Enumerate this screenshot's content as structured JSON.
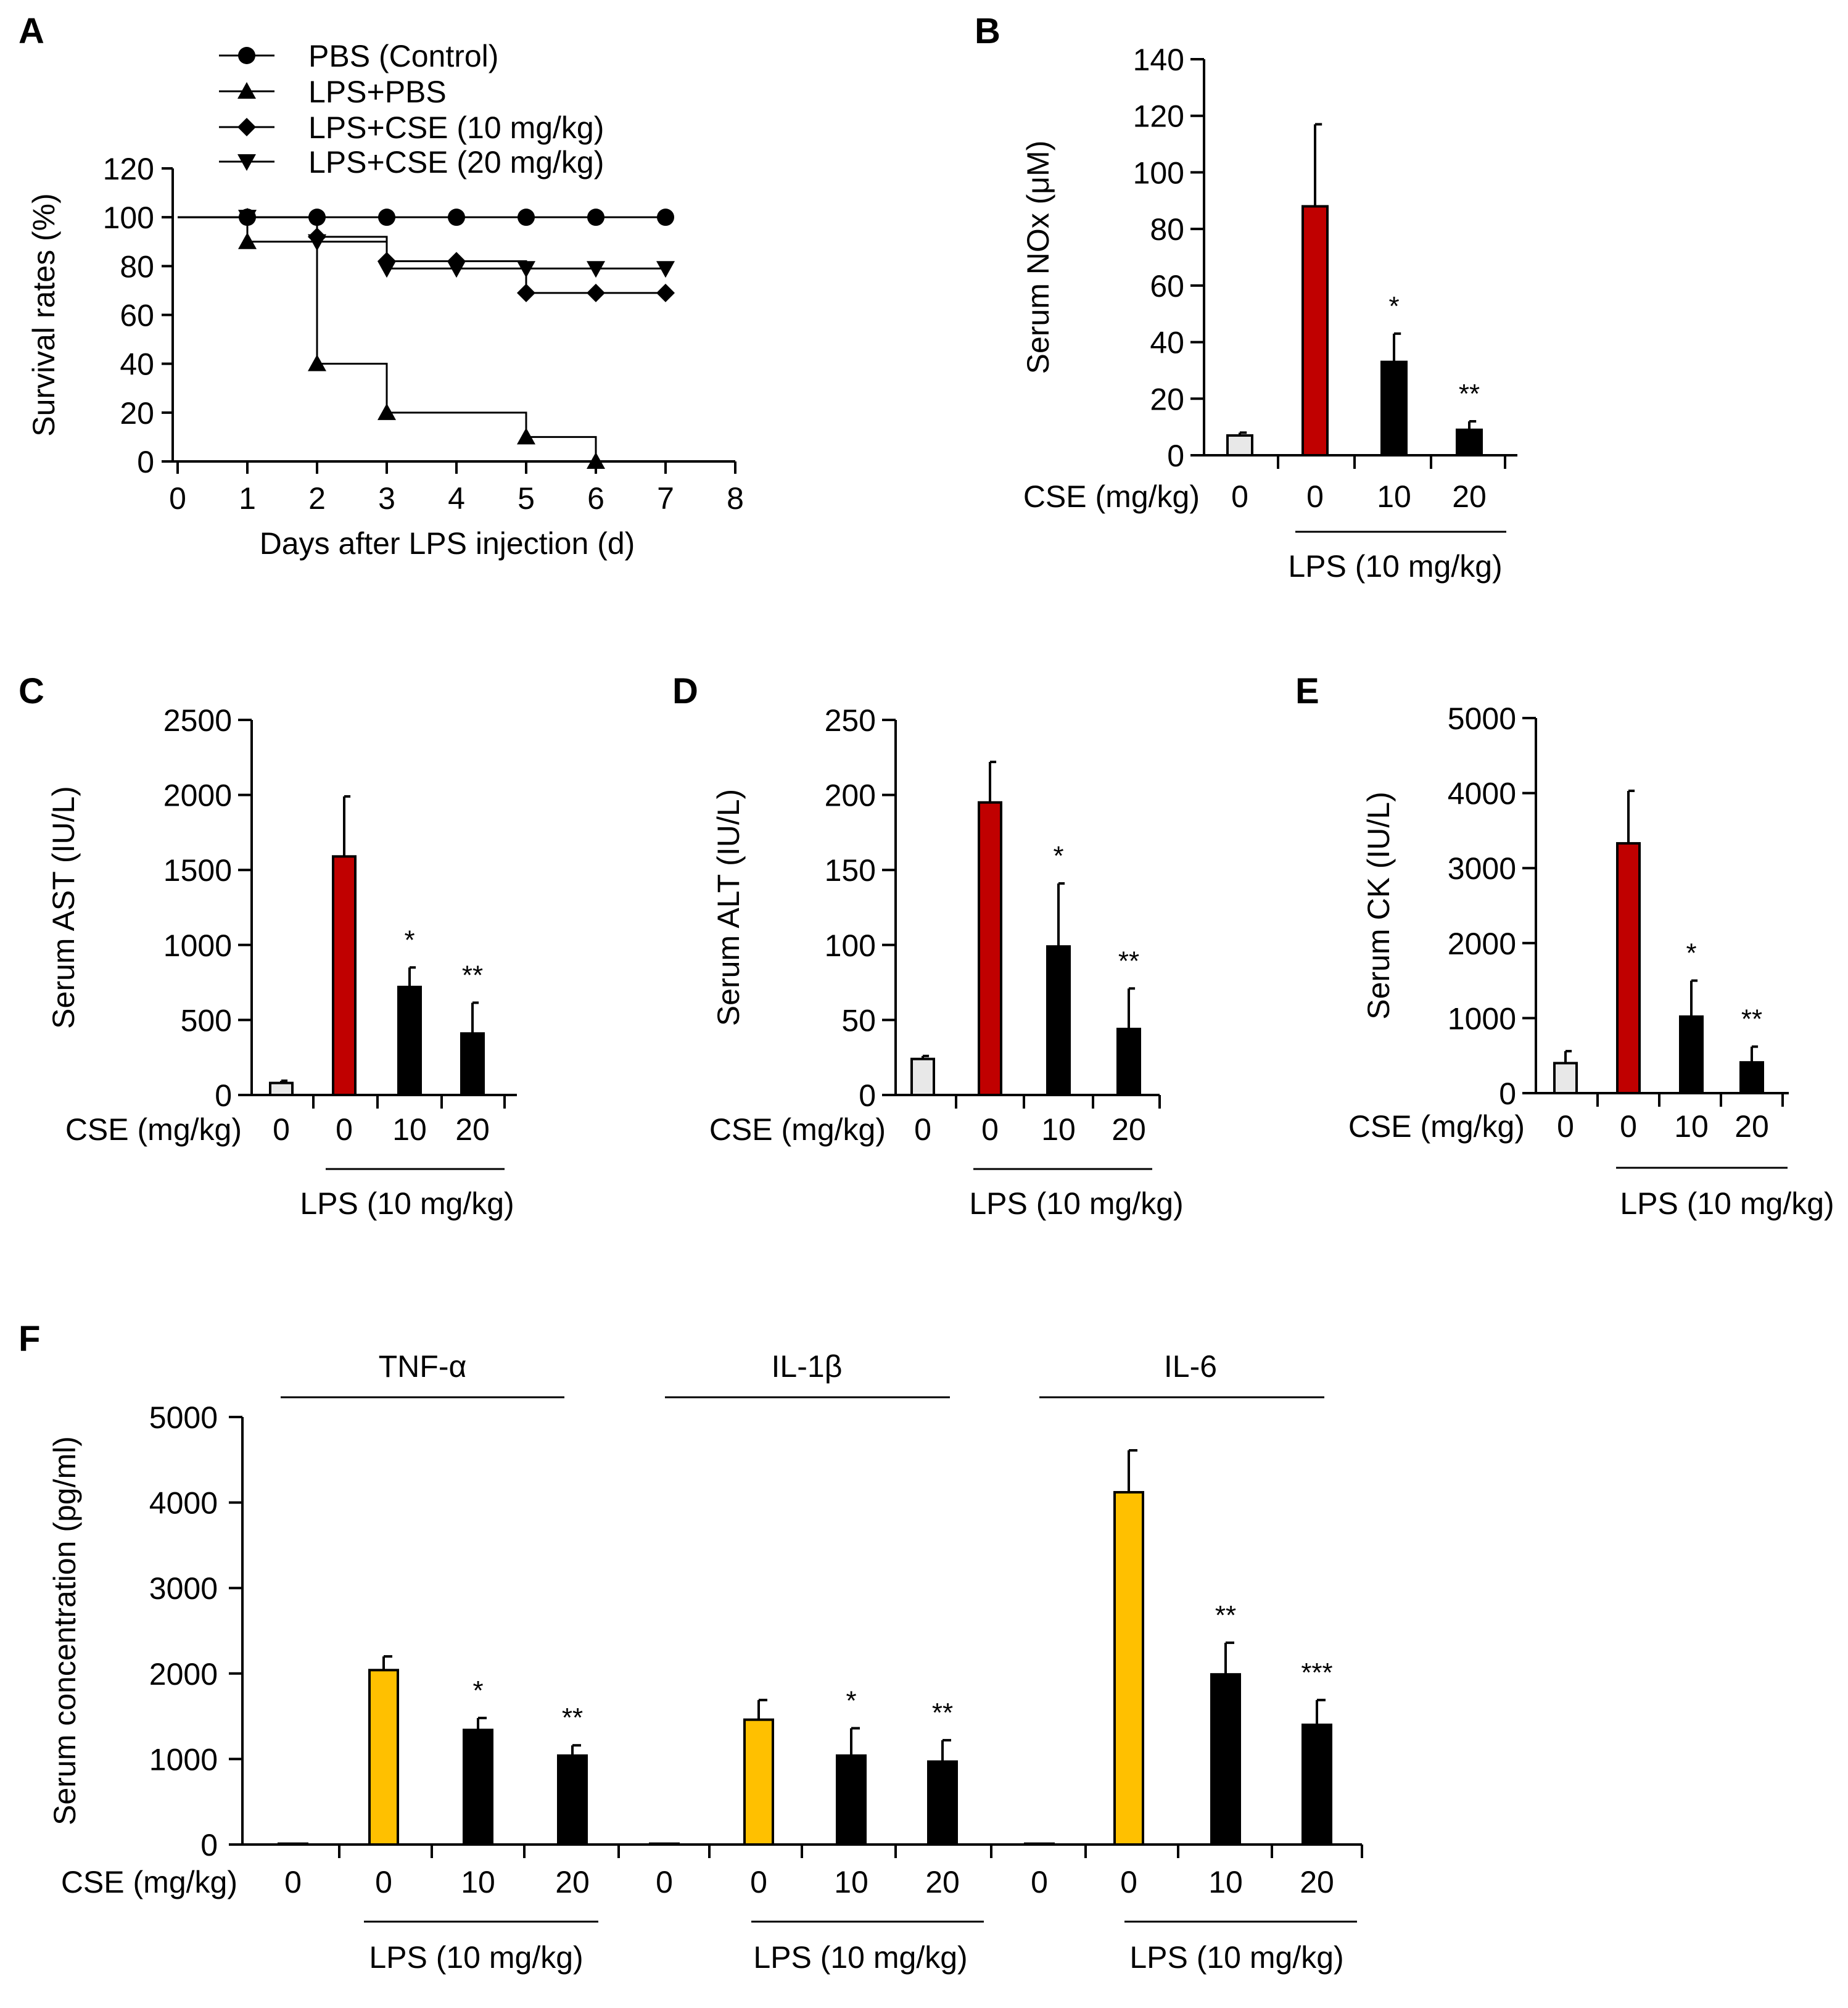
{
  "colors": {
    "axis": "#000000",
    "control_bar": "#e8e8e8",
    "lps_bar_red": "#c00000",
    "lps_bar_yellow": "#ffc000",
    "treated_bar": "#000000"
  },
  "chart_data": [
    {
      "panel": "A",
      "type": "line",
      "step": true,
      "ylabel": "Survival rates (%)",
      "xlabel": "Days after LPS injection (d)",
      "xlim": [
        0,
        8
      ],
      "ylim": [
        0,
        120
      ],
      "xticks": [
        "0",
        "1",
        "2",
        "3",
        "4",
        "5",
        "6",
        "7",
        "8"
      ],
      "yticks": [
        "0",
        "20",
        "40",
        "60",
        "80",
        "100",
        "120"
      ],
      "legend_position": "top",
      "series": [
        {
          "name": "PBS (Control)",
          "marker": "circle",
          "x": [
            0,
            1,
            2,
            3,
            4,
            5,
            6,
            7
          ],
          "y": [
            100,
            100,
            100,
            100,
            100,
            100,
            100,
            100
          ]
        },
        {
          "name": "LPS+PBS",
          "marker": "triangle-up",
          "x": [
            0,
            1,
            2,
            3,
            5,
            6
          ],
          "y": [
            100,
            90,
            40,
            20,
            10,
            0
          ]
        },
        {
          "name": "LPS+CSE (10 mg/kg)",
          "marker": "diamond",
          "x": [
            0,
            1,
            2,
            3,
            4,
            5,
            6,
            7
          ],
          "y": [
            100,
            100,
            92,
            82,
            82,
            69,
            69,
            69
          ]
        },
        {
          "name": "LPS+CSE (20 mg/kg)",
          "marker": "triangle-down",
          "x": [
            0,
            1,
            2,
            3,
            4,
            5,
            6,
            7
          ],
          "y": [
            100,
            100,
            90,
            79,
            79,
            79,
            79,
            79
          ]
        }
      ]
    },
    {
      "panel": "B",
      "type": "bar",
      "ylabel": "Serum NOx (μM)",
      "ylim": [
        0,
        140
      ],
      "yticks": [
        "0",
        "20",
        "40",
        "60",
        "80",
        "100",
        "120",
        "140"
      ],
      "xaxis_label": "CSE (mg/kg)",
      "categories": [
        "0",
        "0",
        "10",
        "20"
      ],
      "values": [
        7,
        88,
        33,
        9
      ],
      "errors": [
        1,
        29,
        10,
        3
      ],
      "significance": [
        "",
        "",
        "*",
        "**"
      ],
      "colors": [
        "control",
        "lps_red",
        "treated",
        "treated"
      ],
      "group_label": "LPS (10 mg/kg)"
    },
    {
      "panel": "C",
      "type": "bar",
      "ylabel": "Serum AST (IU/L)",
      "ylim": [
        0,
        2500
      ],
      "yticks": [
        "0",
        "500",
        "1000",
        "1500",
        "2000",
        "2500"
      ],
      "xaxis_label": "CSE (mg/kg)",
      "categories": [
        "0",
        "0",
        "10",
        "20"
      ],
      "values": [
        80,
        1590,
        720,
        410
      ],
      "errors": [
        15,
        400,
        130,
        205
      ],
      "significance": [
        "",
        "",
        "*",
        "**"
      ],
      "colors": [
        "control",
        "lps_red",
        "treated",
        "treated"
      ],
      "group_label": "LPS (10 mg/kg)"
    },
    {
      "panel": "D",
      "type": "bar",
      "ylabel": "Serum ALT (IU/L)",
      "ylim": [
        0,
        250
      ],
      "yticks": [
        "0",
        "50",
        "100",
        "150",
        "200",
        "250"
      ],
      "xaxis_label": "CSE (mg/kg)",
      "categories": [
        "0",
        "0",
        "10",
        "20"
      ],
      "values": [
        24,
        195,
        99,
        44
      ],
      "errors": [
        2,
        27,
        42,
        27
      ],
      "significance": [
        "",
        "",
        "*",
        "**"
      ],
      "colors": [
        "control",
        "lps_red",
        "treated",
        "treated"
      ],
      "group_label": "LPS (10 mg/kg)"
    },
    {
      "panel": "E",
      "type": "bar",
      "ylabel": "Serum CK (IU/L)",
      "ylim": [
        0,
        5000
      ],
      "yticks": [
        "0",
        "1000",
        "2000",
        "3000",
        "4000",
        "5000"
      ],
      "xaxis_label": "CSE (mg/kg)",
      "categories": [
        "0",
        "0",
        "10",
        "20"
      ],
      "values": [
        400,
        3330,
        1020,
        410
      ],
      "errors": [
        160,
        700,
        480,
        210
      ],
      "significance": [
        "",
        "",
        "*",
        "**"
      ],
      "colors": [
        "control",
        "lps_red",
        "treated",
        "treated"
      ],
      "group_label": "LPS (10 mg/kg)"
    },
    {
      "panel": "F",
      "type": "bar",
      "ylabel": "Serum concentration (pg/ml)",
      "ylim": [
        0,
        5000
      ],
      "yticks": [
        "0",
        "1000",
        "2000",
        "3000",
        "4000",
        "5000"
      ],
      "xaxis_label": "CSE (mg/kg)",
      "groups": [
        {
          "name": "TNF-α",
          "categories": [
            "0",
            "0",
            "10",
            "20"
          ],
          "values": [
            10,
            2040,
            1340,
            1040
          ],
          "errors": [
            0,
            160,
            140,
            120
          ],
          "significance": [
            "",
            "",
            "*",
            "**"
          ],
          "colors": [
            "control",
            "lps_yellow",
            "treated",
            "treated"
          ],
          "group_label": "LPS (10 mg/kg)"
        },
        {
          "name": "IL-1β",
          "categories": [
            "0",
            "0",
            "10",
            "20"
          ],
          "values": [
            10,
            1460,
            1040,
            970
          ],
          "errors": [
            0,
            230,
            320,
            250
          ],
          "significance": [
            "",
            "",
            "*",
            "**"
          ],
          "colors": [
            "control",
            "lps_yellow",
            "treated",
            "treated"
          ],
          "group_label": "LPS (10 mg/kg)"
        },
        {
          "name": "IL-6",
          "categories": [
            "0",
            "0",
            "10",
            "20"
          ],
          "values": [
            10,
            4120,
            1990,
            1400
          ],
          "errors": [
            0,
            490,
            370,
            290
          ],
          "significance": [
            "",
            "",
            "**",
            "***"
          ],
          "colors": [
            "control",
            "lps_yellow",
            "treated",
            "treated"
          ],
          "group_label": "LPS (10 mg/kg)"
        }
      ]
    }
  ]
}
